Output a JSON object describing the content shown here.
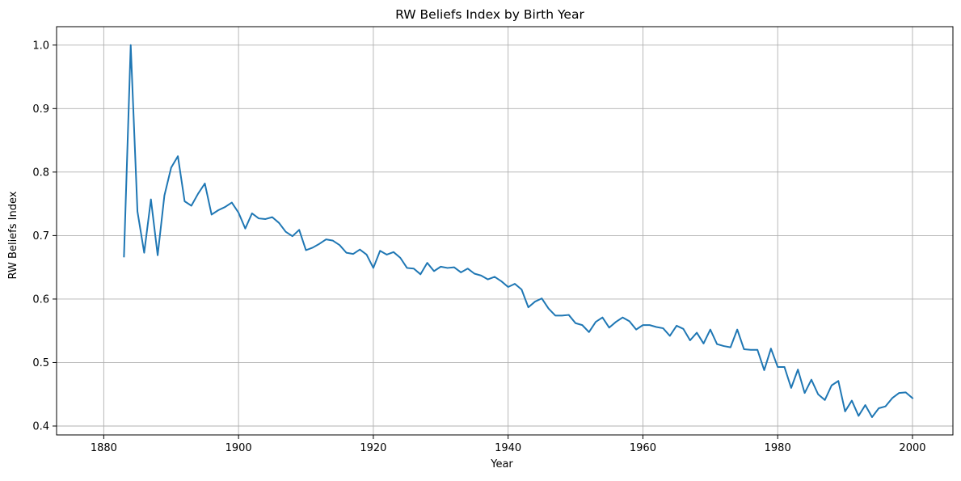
{
  "chart_data": {
    "type": "line",
    "title": "RW Beliefs Index by Birth Year",
    "xlabel": "Year",
    "ylabel": "RW Beliefs Index",
    "xlim": [
      1873,
      2006
    ],
    "ylim": [
      0.386,
      1.029
    ],
    "xticks": [
      1880,
      1900,
      1920,
      1940,
      1960,
      1980,
      2000
    ],
    "yticks": [
      0.4,
      0.5,
      0.6,
      0.7,
      0.8,
      0.9,
      1.0
    ],
    "ytick_labels": [
      "0.4",
      "0.5",
      "0.6",
      "0.7",
      "0.8",
      "0.9",
      "1.0"
    ],
    "grid": true,
    "line_color": "#1f77b4",
    "grid_color": "#b0b0b0",
    "x": [
      1883,
      1884,
      1885,
      1886,
      1887,
      1888,
      1889,
      1890,
      1891,
      1892,
      1893,
      1894,
      1895,
      1896,
      1897,
      1898,
      1899,
      1900,
      1901,
      1902,
      1903,
      1904,
      1905,
      1906,
      1907,
      1908,
      1909,
      1910,
      1911,
      1912,
      1913,
      1914,
      1915,
      1916,
      1917,
      1918,
      1919,
      1920,
      1921,
      1922,
      1923,
      1924,
      1925,
      1926,
      1927,
      1928,
      1929,
      1930,
      1931,
      1932,
      1933,
      1934,
      1935,
      1936,
      1937,
      1938,
      1939,
      1940,
      1941,
      1942,
      1943,
      1944,
      1945,
      1946,
      1947,
      1948,
      1949,
      1950,
      1951,
      1952,
      1953,
      1954,
      1955,
      1956,
      1957,
      1958,
      1959,
      1960,
      1961,
      1962,
      1963,
      1964,
      1965,
      1966,
      1967,
      1968,
      1969,
      1970,
      1971,
      1972,
      1973,
      1974,
      1975,
      1976,
      1977,
      1978,
      1979,
      1980,
      1981,
      1982,
      1983,
      1984,
      1985,
      1986,
      1987,
      1988,
      1989,
      1990,
      1991,
      1992,
      1993,
      1994,
      1995,
      1996,
      1997,
      1998,
      1999,
      2000
    ],
    "y": [
      0.667,
      1.0,
      0.738,
      0.673,
      0.757,
      0.669,
      0.763,
      0.807,
      0.825,
      0.754,
      0.747,
      0.766,
      0.782,
      0.733,
      0.74,
      0.745,
      0.752,
      0.736,
      0.711,
      0.735,
      0.727,
      0.726,
      0.729,
      0.72,
      0.706,
      0.699,
      0.709,
      0.677,
      0.681,
      0.687,
      0.694,
      0.692,
      0.685,
      0.673,
      0.671,
      0.678,
      0.67,
      0.649,
      0.676,
      0.67,
      0.674,
      0.665,
      0.649,
      0.648,
      0.639,
      0.657,
      0.644,
      0.651,
      0.649,
      0.65,
      0.642,
      0.648,
      0.64,
      0.637,
      0.631,
      0.635,
      0.628,
      0.619,
      0.624,
      0.615,
      0.587,
      0.596,
      0.601,
      0.585,
      0.574,
      0.574,
      0.575,
      0.562,
      0.559,
      0.548,
      0.564,
      0.571,
      0.555,
      0.564,
      0.571,
      0.565,
      0.552,
      0.559,
      0.559,
      0.556,
      0.554,
      0.542,
      0.558,
      0.553,
      0.535,
      0.547,
      0.53,
      0.552,
      0.529,
      0.526,
      0.524,
      0.552,
      0.521,
      0.52,
      0.52,
      0.488,
      0.522,
      0.493,
      0.493,
      0.46,
      0.489,
      0.452,
      0.473,
      0.45,
      0.441,
      0.464,
      0.471,
      0.423,
      0.44,
      0.416,
      0.433,
      0.414,
      0.428,
      0.431,
      0.444,
      0.452,
      0.453,
      0.444
    ]
  }
}
